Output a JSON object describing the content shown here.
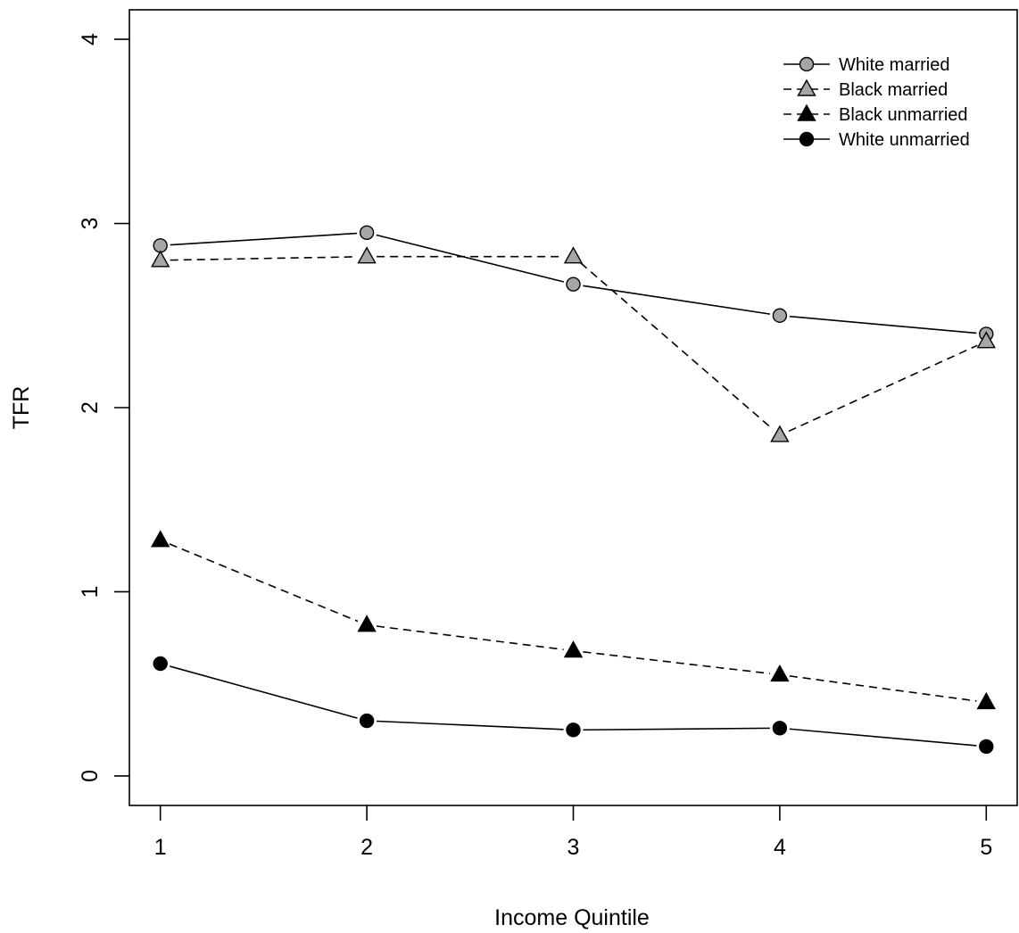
{
  "chart_data": {
    "type": "line",
    "xlabel": "Income Quintile",
    "ylabel": "TFR",
    "x": [
      1,
      2,
      3,
      4,
      5
    ],
    "xlim": [
      0.85,
      5.15
    ],
    "ylim": [
      -0.16,
      4.16
    ],
    "xticks": [
      "1",
      "2",
      "3",
      "4",
      "5"
    ],
    "yticks": [
      "0",
      "1",
      "2",
      "3",
      "4"
    ],
    "legend_position": "top-right",
    "grid": false,
    "series": [
      {
        "name": "White married",
        "values": [
          2.88,
          2.95,
          2.67,
          2.5,
          2.4
        ],
        "marker": "circle",
        "fill": "#a6a6a6",
        "line": "solid"
      },
      {
        "name": "Black married",
        "values": [
          2.8,
          2.82,
          2.82,
          1.85,
          2.36
        ],
        "marker": "triangle",
        "fill": "#a6a6a6",
        "line": "dashed"
      },
      {
        "name": "Black unmarried",
        "values": [
          1.28,
          0.82,
          0.68,
          0.55,
          0.4
        ],
        "marker": "triangle",
        "fill": "#000000",
        "line": "dashed"
      },
      {
        "name": "White unmarried",
        "values": [
          0.61,
          0.3,
          0.25,
          0.26,
          0.16
        ],
        "marker": "circle",
        "fill": "#000000",
        "line": "solid"
      }
    ]
  }
}
